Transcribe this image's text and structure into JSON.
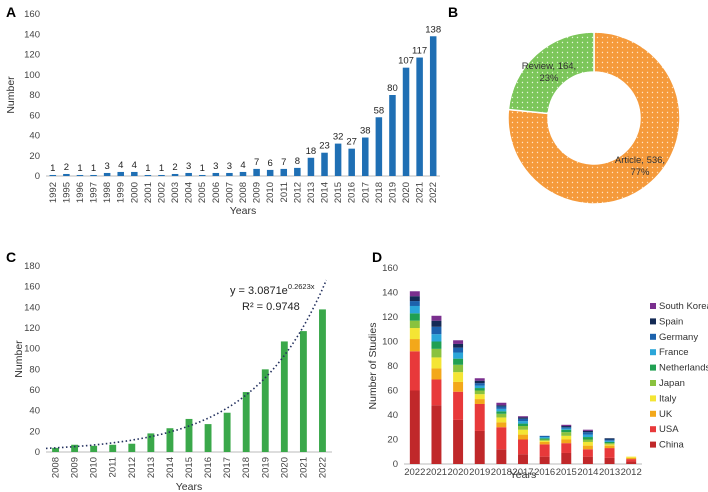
{
  "chart_data": [
    {
      "panel": "A",
      "type": "bar",
      "title": "",
      "xlabel": "Years",
      "ylabel": "Number",
      "ylim": [
        0,
        160
      ],
      "yticks": [
        "0",
        "20",
        "40",
        "60",
        "80",
        "100",
        "120",
        "140",
        "160"
      ],
      "color": "#1f6fb4",
      "categories": [
        "1992",
        "1995",
        "1996",
        "1997",
        "1998",
        "1999",
        "2000",
        "2001",
        "2002",
        "2003",
        "2004",
        "2005",
        "2006",
        "2007",
        "2008",
        "2009",
        "2010",
        "2011",
        "2012",
        "2013",
        "2014",
        "2015",
        "2016",
        "2017",
        "2018",
        "2019",
        "2020",
        "2021",
        "2022"
      ],
      "values": [
        1,
        2,
        1,
        1,
        3,
        4,
        4,
        1,
        1,
        2,
        3,
        1,
        3,
        3,
        4,
        7,
        6,
        7,
        8,
        18,
        23,
        32,
        27,
        38,
        58,
        80,
        107,
        117,
        138
      ],
      "labels": [
        "1",
        "2",
        "1",
        "1",
        "3",
        "4",
        "4",
        "1",
        "1",
        "2",
        "3",
        "1",
        "3",
        "3",
        "4",
        "7",
        "6",
        "7",
        "8",
        "18",
        "23",
        "32",
        "27",
        "38",
        "58",
        "80",
        "107",
        "117",
        "138"
      ]
    },
    {
      "panel": "B",
      "type": "pie",
      "title": "",
      "slices": [
        {
          "name": "Article",
          "value": 536,
          "percent": 77,
          "color": "#f59a3b",
          "label_line1": "Article, 536,",
          "label_line2": "77%"
        },
        {
          "name": "Review",
          "value": 164,
          "percent": 23,
          "color": "#7cc65a",
          "label_line1": "Review, 164,",
          "label_line2": "23%"
        }
      ]
    },
    {
      "panel": "C",
      "type": "bar",
      "title": "",
      "xlabel": "Years",
      "ylabel": "Number",
      "ylim": [
        0,
        180
      ],
      "yticks": [
        "0",
        "20",
        "40",
        "60",
        "80",
        "100",
        "120",
        "140",
        "160",
        "180"
      ],
      "color": "#3aa84a",
      "categories": [
        "2008",
        "2009",
        "2010",
        "2011",
        "2012",
        "2013",
        "2014",
        "2015",
        "2016",
        "2017",
        "2018",
        "2019",
        "2020",
        "2021",
        "2022"
      ],
      "values": [
        4,
        7,
        6,
        7,
        8,
        18,
        23,
        32,
        27,
        38,
        58,
        80,
        107,
        117,
        138
      ],
      "trendline": {
        "a": 3.0871,
        "b": 0.2623,
        "equation_prefix": "y = 3.0871e",
        "equation_exp": "0.2623x",
        "r2_text": "R² = 0.9748"
      }
    },
    {
      "panel": "D",
      "type": "bar",
      "stacked": true,
      "title": "",
      "xlabel": "Years",
      "ylabel": "Number of Studies",
      "ylim": [
        0,
        160
      ],
      "yticks": [
        "0",
        "20",
        "40",
        "60",
        "80",
        "100",
        "120",
        "140",
        "160"
      ],
      "categories": [
        "2022",
        "2021",
        "2020",
        "2019",
        "2018",
        "2017",
        "2016",
        "2015",
        "2014",
        "2013",
        "2012"
      ],
      "series": [
        {
          "name": "China",
          "color": "#c0282a",
          "values": [
            60,
            48,
            36,
            27,
            12,
            8,
            6,
            9,
            6,
            5,
            2
          ]
        },
        {
          "name": "USA",
          "color": "#e8393a",
          "values": [
            32,
            21,
            23,
            22,
            18,
            12,
            10,
            8,
            6,
            8,
            2
          ]
        },
        {
          "name": "UK",
          "color": "#f3a81a",
          "values": [
            10,
            9,
            8,
            4,
            4,
            4,
            2,
            3,
            3,
            2,
            1
          ]
        },
        {
          "name": "Italy",
          "color": "#f4e534",
          "values": [
            9,
            9,
            8,
            4,
            4,
            4,
            1,
            3,
            3,
            1,
            1
          ]
        },
        {
          "name": "Japan",
          "color": "#8ac23e",
          "values": [
            6,
            7,
            6,
            3,
            3,
            3,
            1,
            3,
            2,
            1,
            0
          ]
        },
        {
          "name": "Netherlands",
          "color": "#20a052",
          "values": [
            6,
            6,
            5,
            2,
            2,
            2,
            1,
            2,
            2,
            1,
            0
          ]
        },
        {
          "name": "France",
          "color": "#2ba6d9",
          "values": [
            6,
            6,
            5,
            2,
            2,
            2,
            1,
            1,
            2,
            1,
            0
          ]
        },
        {
          "name": "Germany",
          "color": "#1c62ad",
          "values": [
            4,
            6,
            4,
            2,
            2,
            2,
            1,
            1,
            2,
            1,
            0
          ]
        },
        {
          "name": "Spain",
          "color": "#142a55",
          "values": [
            4,
            5,
            3,
            2,
            1,
            1,
            0,
            1,
            1,
            1,
            0
          ]
        },
        {
          "name": "South Korea",
          "color": "#7a2f8e",
          "values": [
            4,
            4,
            3,
            2,
            2,
            1,
            0,
            1,
            1,
            0,
            0
          ]
        }
      ],
      "legend_order": [
        "South Korea",
        "Spain",
        "Germany",
        "France",
        "Netherlands",
        "Japan",
        "Italy",
        "UK",
        "USA",
        "China"
      ]
    }
  ]
}
